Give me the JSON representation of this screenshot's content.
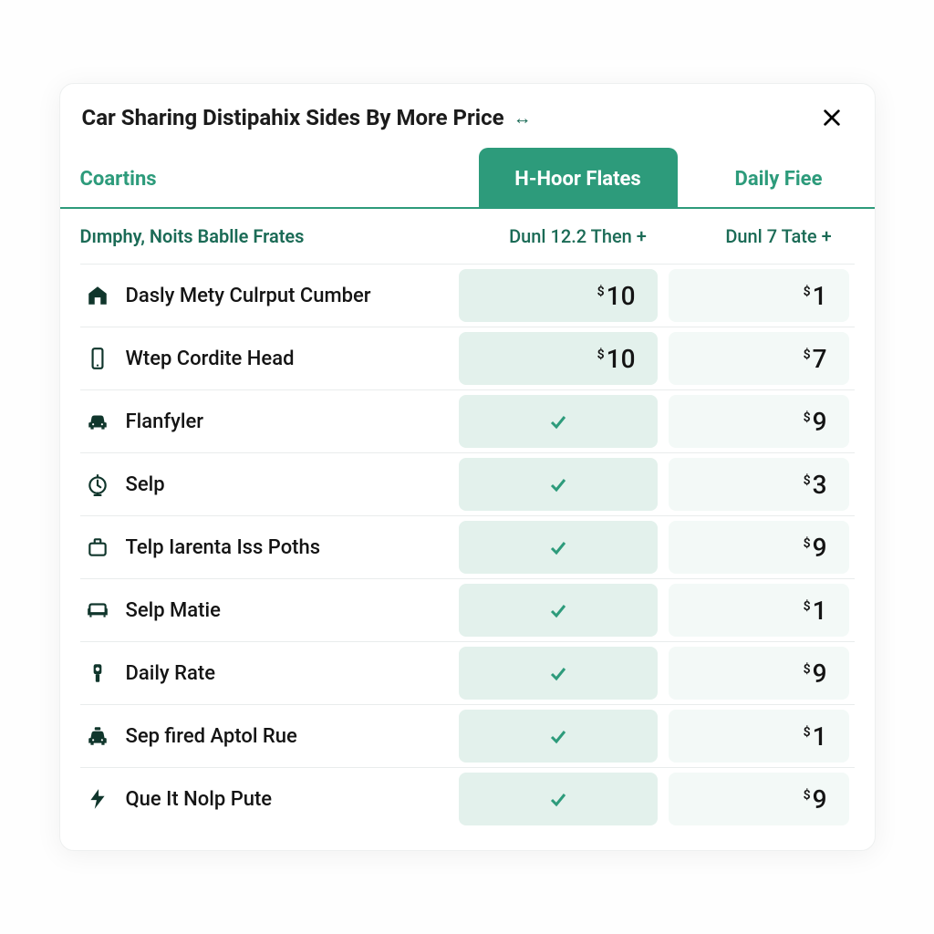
{
  "colors": {
    "accent": "#2d9b7b",
    "accent_light": "#e3f1ec",
    "accent_lighter": "#f3f9f7",
    "text": "#141414",
    "teal_dark": "#1b6b56",
    "divider": "#e9ecec",
    "card_bg": "#ffffff",
    "page_bg": "#fefefe"
  },
  "header": {
    "title": "Car Sharing Distipahix Sides By More Price",
    "expand_icon": "↔"
  },
  "columns": {
    "label": "Coartins",
    "col1": {
      "header": "H-Hoor Flates",
      "highlighted": true,
      "sub": "Dunl 12.2 Then +"
    },
    "col2": {
      "header": "Daily Fiee",
      "sub": "Dunl 7 Tate +"
    }
  },
  "subheading": "Dımphy, Noits Bablle Frates",
  "rows": [
    {
      "icon": "house",
      "label": "Dasly Mety Culrput Cumber",
      "col1": {
        "type": "price",
        "value": "10"
      },
      "col2": {
        "type": "price",
        "value": "1"
      }
    },
    {
      "icon": "phone",
      "label": "Wtep Cordite Head",
      "col1": {
        "type": "price",
        "value": "10"
      },
      "col2": {
        "type": "price",
        "value": "7"
      }
    },
    {
      "icon": "car",
      "label": "Flanfyler",
      "col1": {
        "type": "check"
      },
      "col2": {
        "type": "price",
        "value": "9"
      }
    },
    {
      "icon": "clock",
      "label": "Selp",
      "col1": {
        "type": "check"
      },
      "col2": {
        "type": "price",
        "value": "3"
      }
    },
    {
      "icon": "briefcase",
      "label": "Telp Iarenta Iss Poths",
      "col1": {
        "type": "check"
      },
      "col2": {
        "type": "price",
        "value": "9"
      }
    },
    {
      "icon": "couch",
      "label": "Selp Matie",
      "col1": {
        "type": "check"
      },
      "col2": {
        "type": "price",
        "value": "1"
      }
    },
    {
      "icon": "meter",
      "label": "Daily Rate",
      "col1": {
        "type": "check"
      },
      "col2": {
        "type": "price",
        "value": "9"
      }
    },
    {
      "icon": "taxi",
      "label": "Sep fired Aptol Rue",
      "col1": {
        "type": "check"
      },
      "col2": {
        "type": "price",
        "value": "1"
      }
    },
    {
      "icon": "bolt",
      "label": "Que It Nolp Pute",
      "col1": {
        "type": "check"
      },
      "col2": {
        "type": "price",
        "value": "9"
      }
    }
  ],
  "currency_symbol": "$"
}
